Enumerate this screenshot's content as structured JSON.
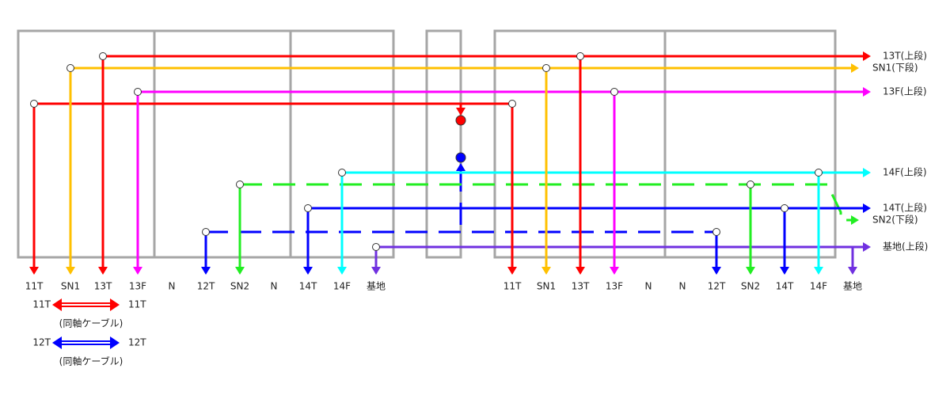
{
  "bottom_labels": {
    "left": [
      "11T",
      "SN1",
      "13T",
      "13F",
      "N",
      "12T",
      "SN2",
      "N",
      "14T",
      "14F",
      "基地"
    ],
    "right": [
      "11T",
      "SN1",
      "13T",
      "13F",
      "N",
      "N",
      "12T",
      "SN2",
      "14T",
      "14F",
      "基地"
    ]
  },
  "side_labels": [
    "13T(上段)",
    "SN1(下段)",
    "13F(上段)",
    "14F(上段)",
    "14T(上段)",
    "SN2(下段)",
    "基地(上段)"
  ],
  "legend": [
    {
      "from": "11T",
      "to": "11T",
      "note": "(同軸ケーブル)"
    },
    {
      "from": "12T",
      "to": "12T",
      "note": "(同軸ケーブル)"
    }
  ]
}
